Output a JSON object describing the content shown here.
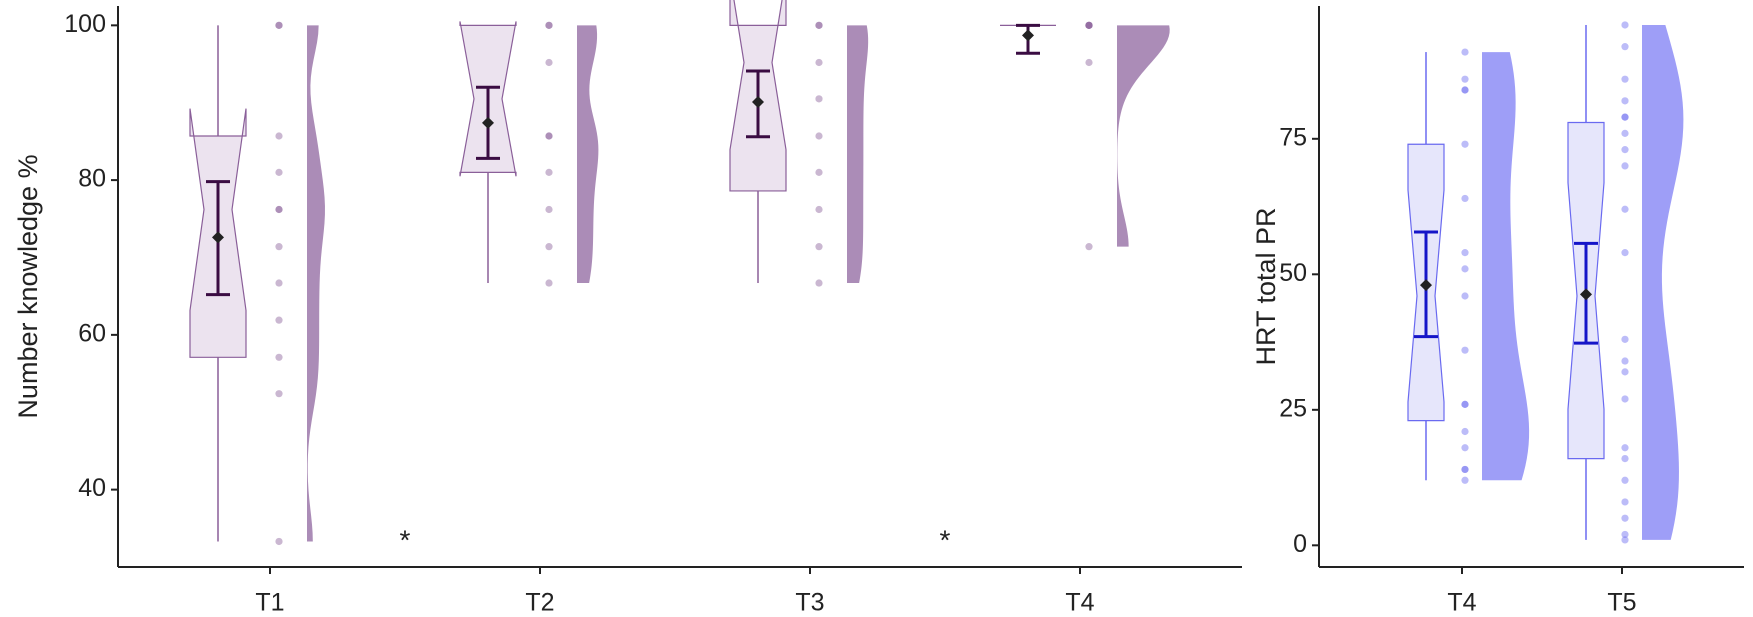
{
  "chart_data": [
    {
      "type": "box",
      "y_label": "Number knowledge  %",
      "categories": [
        "T1",
        "T2",
        "T3",
        "T4"
      ],
      "ylim": [
        30,
        102.5
      ],
      "yticks": [
        40,
        60,
        80,
        100
      ],
      "color": "#8a5f99",
      "fill_color": "#ece3ef",
      "violin_color": "#9c78aa",
      "mean_color": "#3a0c42",
      "annotations": [
        "*",
        "*"
      ],
      "boxes": [
        {
          "whisker_low": 33.3,
          "q1": 57.1,
          "median": 76.2,
          "q3": 85.7,
          "whisker_high": 100,
          "mean": 72.6,
          "ci_low": 65.2,
          "ci_high": 79.8,
          "points": [
            100,
            100,
            85.7,
            81,
            76.2,
            76.2,
            71.4,
            66.7,
            61.9,
            57.1,
            52.4,
            33.3
          ]
        },
        {
          "whisker_low": 66.7,
          "q1": 81,
          "median": 90.5,
          "q3": 100,
          "whisker_high": 100,
          "mean": 87.4,
          "ci_low": 82.8,
          "ci_high": 92,
          "points": [
            100,
            100,
            95.2,
            85.7,
            85.7,
            81,
            76.2,
            71.4,
            66.7
          ]
        },
        {
          "whisker_low": 66.7,
          "q1": 78.6,
          "median": 95.2,
          "q3": 100,
          "whisker_high": 100,
          "mean": 90.1,
          "ci_low": 85.6,
          "ci_high": 94.1,
          "points": [
            100,
            100,
            95.2,
            90.5,
            85.7,
            81,
            76.2,
            71.4,
            66.7
          ]
        },
        {
          "whisker_low": 100,
          "q1": 100,
          "median": 100,
          "q3": 100,
          "whisker_high": 100,
          "mean": 98.7,
          "ci_low": 96.4,
          "ci_high": 100,
          "points": [
            100,
            100,
            100,
            100,
            95.2,
            71.4
          ]
        }
      ]
    },
    {
      "type": "box",
      "y_label": "HRT total PR",
      "categories": [
        "T4",
        "T5"
      ],
      "ylim": [
        -4,
        99.5
      ],
      "yticks": [
        0,
        25,
        50,
        75
      ],
      "color": "#6a6af0",
      "fill_color": "#e6e6fb",
      "violin_color": "#8d8df6",
      "mean_color": "#1515c8",
      "boxes": [
        {
          "whisker_low": 12,
          "q1": 23,
          "median": 46,
          "q3": 74,
          "whisker_high": 91,
          "mean": 48,
          "ci_low": 38.5,
          "ci_high": 57.8,
          "points": [
            91,
            86,
            84,
            84,
            74,
            64,
            54,
            51,
            46,
            36,
            26,
            26,
            21,
            18,
            14,
            14,
            12
          ]
        },
        {
          "whisker_low": 1,
          "q1": 16,
          "median": 46,
          "q3": 78,
          "whisker_high": 96,
          "mean": 46.3,
          "ci_low": 37.3,
          "ci_high": 55.7,
          "points": [
            96,
            92,
            86,
            82,
            79,
            79,
            76,
            73,
            70,
            62,
            54,
            38,
            34,
            32,
            27,
            18,
            16,
            12,
            8,
            5,
            2,
            1
          ]
        }
      ]
    }
  ]
}
